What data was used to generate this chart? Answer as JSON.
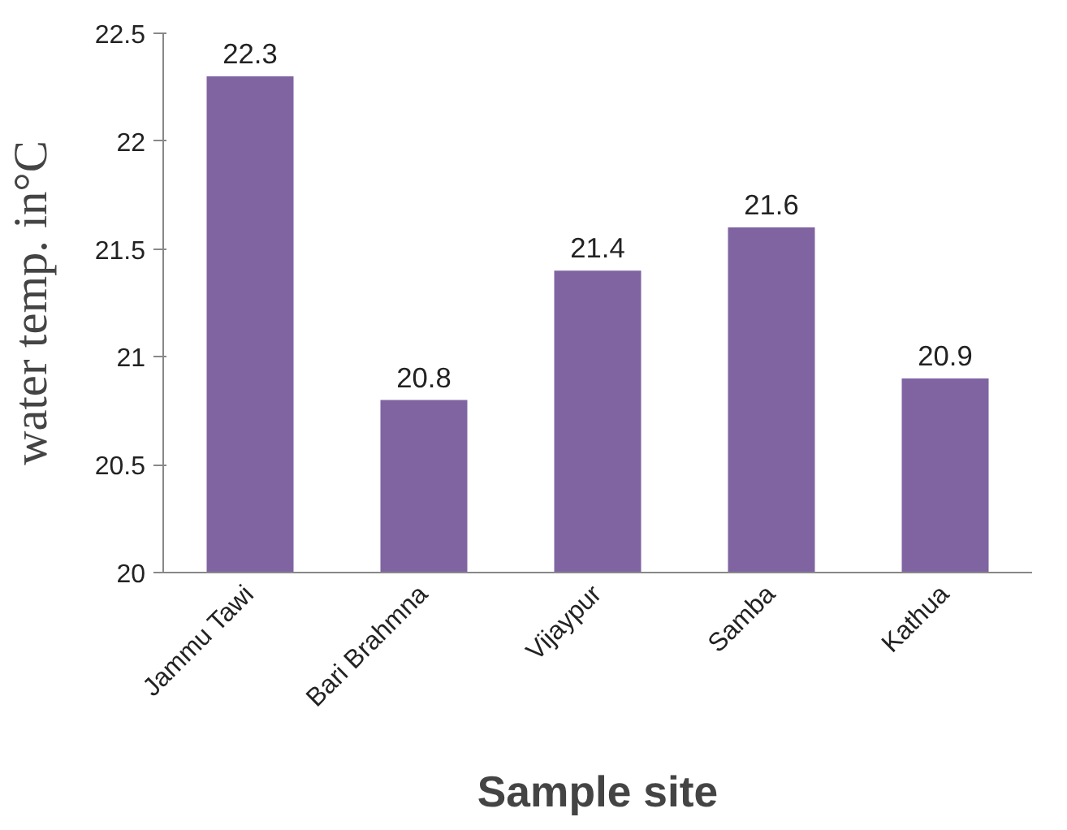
{
  "chart_data": {
    "type": "bar",
    "xlabel": "Sample site",
    "ylabel": "water temp. in°C",
    "categories": [
      "Jammu Tawi",
      "Bari Brahmna",
      "Vijaypur",
      "Samba",
      "Kathua"
    ],
    "values": [
      22.3,
      20.8,
      21.4,
      21.6,
      20.9
    ],
    "color": "#8064a2",
    "ylim": [
      20,
      22.5
    ],
    "yticks": [
      20,
      20.5,
      21,
      21.5,
      22,
      22.5
    ],
    "grid": false,
    "data_labels": true
  }
}
